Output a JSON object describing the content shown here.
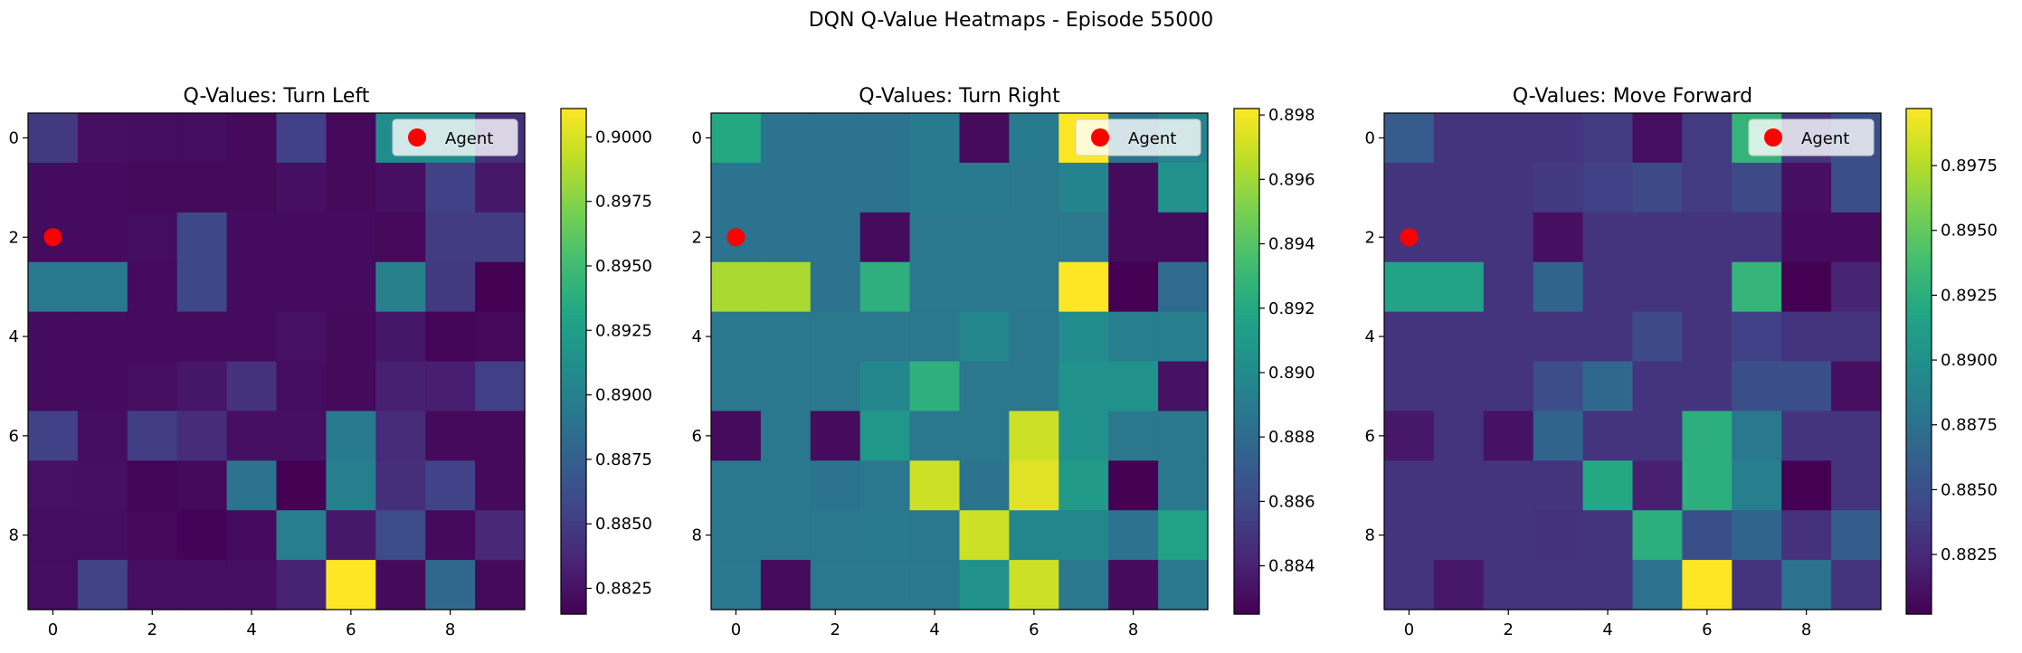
{
  "figure": {
    "title": "DQN Q-Value Heatmaps - Episode 55000"
  },
  "chart_data": [
    {
      "type": "heatmap",
      "title": "Q-Values: Turn Left",
      "colormap": "viridis",
      "vmin": 0.8815,
      "vmax": 0.9011,
      "x": [
        0,
        1,
        2,
        3,
        4,
        5,
        6,
        7,
        8,
        9
      ],
      "y": [
        0,
        1,
        2,
        3,
        4,
        5,
        6,
        7,
        8,
        9
      ],
      "xticks": [
        0,
        2,
        4,
        6,
        8
      ],
      "yticks": [
        0,
        2,
        4,
        6,
        8
      ],
      "colorbar_ticks": [
        "0.9000",
        "0.8975",
        "0.8950",
        "0.8925",
        "0.8900",
        "0.8875",
        "0.8850",
        "0.8825"
      ],
      "values": [
        [
          0.8848,
          0.8823,
          0.8822,
          0.8822,
          0.882,
          0.8853,
          0.8819,
          0.891,
          0.891,
          0.8842
        ],
        [
          0.8821,
          0.8821,
          0.882,
          0.882,
          0.882,
          0.8823,
          0.882,
          0.8823,
          0.8853,
          0.8828
        ],
        [
          0.8821,
          0.8821,
          0.8822,
          0.8857,
          0.8821,
          0.8821,
          0.8821,
          0.8819,
          0.885,
          0.885
        ],
        [
          0.8894,
          0.8894,
          0.8821,
          0.8857,
          0.8821,
          0.8821,
          0.8821,
          0.8901,
          0.8848,
          0.8815
        ],
        [
          0.8821,
          0.8821,
          0.8821,
          0.8821,
          0.8821,
          0.8824,
          0.882,
          0.8827,
          0.8817,
          0.8819
        ],
        [
          0.8821,
          0.8821,
          0.8823,
          0.8827,
          0.8843,
          0.8822,
          0.882,
          0.8833,
          0.8832,
          0.8852
        ],
        [
          0.8853,
          0.8822,
          0.8851,
          0.884,
          0.8823,
          0.8823,
          0.8895,
          0.884,
          0.882,
          0.882
        ],
        [
          0.8824,
          0.8823,
          0.8817,
          0.882,
          0.889,
          0.8815,
          0.8899,
          0.8842,
          0.8854,
          0.882
        ],
        [
          0.8822,
          0.8822,
          0.8819,
          0.8816,
          0.8821,
          0.8898,
          0.8828,
          0.886,
          0.882,
          0.8838
        ],
        [
          0.8822,
          0.8855,
          0.8823,
          0.8823,
          0.8823,
          0.8834,
          0.9011,
          0.882,
          0.8881,
          0.882
        ]
      ],
      "agent": {
        "x": 0,
        "y": 2,
        "legend": "Agent",
        "color": "#ff0000"
      }
    },
    {
      "type": "heatmap",
      "title": "Q-Values: Turn Right",
      "colormap": "viridis",
      "vmin": 0.8825,
      "vmax": 0.8982,
      "x": [
        0,
        1,
        2,
        3,
        4,
        5,
        6,
        7,
        8,
        9
      ],
      "y": [
        0,
        1,
        2,
        3,
        4,
        5,
        6,
        7,
        8,
        9
      ],
      "xticks": [
        0,
        2,
        4,
        6,
        8
      ],
      "yticks": [
        0,
        2,
        4,
        6,
        8
      ],
      "colorbar_ticks": [
        "0.898",
        "0.896",
        "0.894",
        "0.892",
        "0.890",
        "0.888",
        "0.886",
        "0.884"
      ],
      "values": [
        [
          0.892,
          0.8885,
          0.8885,
          0.8885,
          0.889,
          0.883,
          0.889,
          0.8982,
          0.8885,
          0.8895
        ],
        [
          0.8885,
          0.8885,
          0.8885,
          0.8885,
          0.889,
          0.889,
          0.8887,
          0.8895,
          0.883,
          0.8905
        ],
        [
          0.8885,
          0.8885,
          0.8885,
          0.883,
          0.8887,
          0.8887,
          0.8887,
          0.8887,
          0.883,
          0.883
        ],
        [
          0.8962,
          0.8962,
          0.8885,
          0.8925,
          0.8887,
          0.8887,
          0.8887,
          0.8982,
          0.8825,
          0.888
        ],
        [
          0.8887,
          0.8887,
          0.8887,
          0.8887,
          0.8887,
          0.8897,
          0.8887,
          0.89,
          0.8892,
          0.8892
        ],
        [
          0.8887,
          0.8887,
          0.8887,
          0.8897,
          0.8925,
          0.8887,
          0.8887,
          0.8905,
          0.8905,
          0.8833
        ],
        [
          0.883,
          0.8887,
          0.883,
          0.8908,
          0.8887,
          0.8887,
          0.897,
          0.8905,
          0.8887,
          0.8887
        ],
        [
          0.8887,
          0.8887,
          0.8885,
          0.8887,
          0.897,
          0.8885,
          0.8975,
          0.891,
          0.8825,
          0.8887
        ],
        [
          0.8887,
          0.8887,
          0.8887,
          0.889,
          0.8887,
          0.897,
          0.8897,
          0.8897,
          0.8885,
          0.8915
        ],
        [
          0.8887,
          0.883,
          0.8887,
          0.8887,
          0.8887,
          0.8905,
          0.897,
          0.8887,
          0.883,
          0.8887
        ]
      ],
      "agent": {
        "x": 0,
        "y": 2,
        "legend": "Agent",
        "color": "#ff0000"
      }
    },
    {
      "type": "heatmap",
      "title": "Q-Values: Move Forward",
      "colormap": "viridis",
      "vmin": 0.8802,
      "vmax": 0.8997,
      "x": [
        0,
        1,
        2,
        3,
        4,
        5,
        6,
        7,
        8,
        9
      ],
      "y": [
        0,
        1,
        2,
        3,
        4,
        5,
        6,
        7,
        8,
        9
      ],
      "xticks": [
        0,
        2,
        4,
        6,
        8
      ],
      "yticks": [
        0,
        2,
        4,
        6,
        8
      ],
      "colorbar_ticks": [
        "0.8975",
        "0.8950",
        "0.8925",
        "0.8900",
        "0.8875",
        "0.8850",
        "0.8825"
      ],
      "values": [
        [
          0.8858,
          0.8832,
          0.8832,
          0.8832,
          0.8836,
          0.881,
          0.8836,
          0.893,
          0.8832,
          0.885
        ],
        [
          0.8832,
          0.8832,
          0.8832,
          0.8835,
          0.884,
          0.8845,
          0.8836,
          0.8845,
          0.881,
          0.885
        ],
        [
          0.8832,
          0.8832,
          0.8832,
          0.881,
          0.8832,
          0.8832,
          0.8832,
          0.8832,
          0.8808,
          0.8808
        ],
        [
          0.8915,
          0.8915,
          0.8832,
          0.8865,
          0.8832,
          0.8832,
          0.8832,
          0.893,
          0.8802,
          0.8822
        ],
        [
          0.8832,
          0.8832,
          0.8832,
          0.8832,
          0.8832,
          0.8845,
          0.8832,
          0.884,
          0.8832,
          0.8832
        ],
        [
          0.8832,
          0.8832,
          0.8832,
          0.8848,
          0.8868,
          0.8832,
          0.8832,
          0.885,
          0.885,
          0.881
        ],
        [
          0.8815,
          0.8832,
          0.8812,
          0.8865,
          0.8832,
          0.8832,
          0.8925,
          0.888,
          0.8832,
          0.8832
        ],
        [
          0.8832,
          0.8832,
          0.8832,
          0.8832,
          0.892,
          0.882,
          0.8925,
          0.8885,
          0.8802,
          0.8832
        ],
        [
          0.8832,
          0.8832,
          0.8832,
          0.883,
          0.8832,
          0.8925,
          0.885,
          0.8865,
          0.883,
          0.886
        ],
        [
          0.8832,
          0.8815,
          0.8832,
          0.8832,
          0.8832,
          0.8875,
          0.8997,
          0.8832,
          0.8875,
          0.8832
        ]
      ],
      "agent": {
        "x": 0,
        "y": 2,
        "legend": "Agent",
        "color": "#ff0000"
      }
    }
  ]
}
